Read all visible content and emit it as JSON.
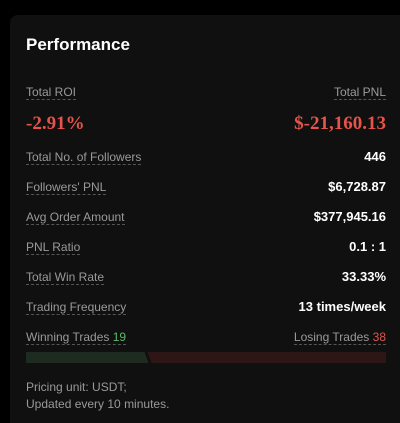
{
  "header": {
    "title": "Performance"
  },
  "summary": {
    "roi": {
      "label": "Total ROI",
      "value": "-2.91%"
    },
    "pnl": {
      "label": "Total PNL",
      "value": "$-21,160.13"
    }
  },
  "rows": [
    {
      "label": "Total No. of Followers",
      "value": "446"
    },
    {
      "label": "Followers' PNL",
      "value": "$6,728.87"
    },
    {
      "label": "Avg Order Amount",
      "value": "$377,945.16"
    },
    {
      "label": "PNL Ratio",
      "value": "0.1 : 1"
    },
    {
      "label": "Total Win Rate",
      "value": "33.33%"
    },
    {
      "label": "Trading Frequency",
      "value": "13 times/week"
    }
  ],
  "trades": {
    "winning": {
      "label": "Winning Trades",
      "value": 19
    },
    "losing": {
      "label": "Losing Trades",
      "value": 38
    }
  },
  "footer": [
    "Pricing unit: USDT;",
    "Updated every 10 minutes."
  ]
}
